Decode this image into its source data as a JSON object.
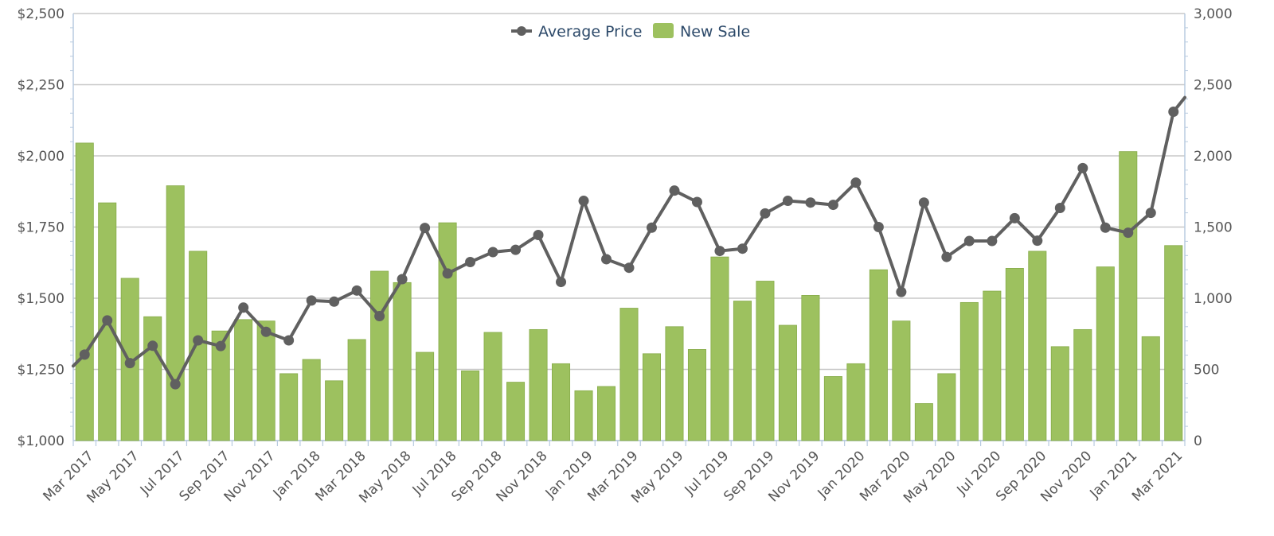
{
  "chart_data": {
    "type": "bar",
    "legend": {
      "placement": "top-center",
      "items": [
        {
          "label": "Average Price",
          "kind": "line"
        },
        {
          "label": "New Sale",
          "kind": "bar"
        }
      ]
    },
    "colors": {
      "bar": "#9dc15f",
      "bar_stroke": "#86ab49",
      "line": "#606060",
      "grid": "#c8c8c8",
      "axis": "#b8cbe0",
      "tick_text": "#555555",
      "legend_text": "#2d4a6a"
    },
    "left_axis": {
      "min": 1000,
      "max": 2500,
      "ticks": [
        1000,
        1250,
        1500,
        1750,
        2000,
        2250,
        2500
      ],
      "tick_labels": [
        "$1,000",
        "$1,250",
        "$1,500",
        "$1,750",
        "$2,000",
        "$2,250",
        "$2,500"
      ]
    },
    "right_axis": {
      "min": 0,
      "max": 3000,
      "ticks": [
        0,
        500,
        1000,
        1500,
        2000,
        2500,
        3000
      ],
      "tick_labels": [
        "0",
        "500",
        "1,000",
        "1,500",
        "2,000",
        "2,500",
        "3,000"
      ]
    },
    "grid": true,
    "x_tick_labels": [
      "Mar 2017",
      "May 2017",
      "Jul 2017",
      "Sep 2017",
      "Nov 2017",
      "Jan 2018",
      "Mar 2018",
      "May 2018",
      "Jul 2018",
      "Sep 2018",
      "Nov 2018",
      "Jan 2019",
      "Mar 2019",
      "May 2019",
      "Jul 2019",
      "Sep 2019",
      "Nov 2019",
      "Jan 2020",
      "Mar 2020",
      "May 2020",
      "Jul 2020",
      "Sep 2020",
      "Nov 2020",
      "Jan 2021",
      "Mar 2021"
    ],
    "categories": [
      "Mar 2017",
      "Apr 2017",
      "May 2017",
      "Jun 2017",
      "Jul 2017",
      "Aug 2017",
      "Sep 2017",
      "Oct 2017",
      "Nov 2017",
      "Dec 2017",
      "Jan 2018",
      "Feb 2018",
      "Mar 2018",
      "Apr 2018",
      "May 2018",
      "Jun 2018",
      "Jul 2018",
      "Aug 2018",
      "Sep 2018",
      "Oct 2018",
      "Nov 2018",
      "Dec 2018",
      "Jan 2019",
      "Feb 2019",
      "Mar 2019",
      "Apr 2019",
      "May 2019",
      "Jun 2019",
      "Jul 2019",
      "Aug 2019",
      "Sep 2019",
      "Oct 2019",
      "Nov 2019",
      "Dec 2019",
      "Jan 2020",
      "Feb 2020",
      "Mar 2020",
      "Apr 2020",
      "May 2020",
      "Jun 2020",
      "Jul 2020",
      "Aug 2020",
      "Sep 2020",
      "Oct 2020",
      "Nov 2020",
      "Dec 2020",
      "Jan 2021",
      "Feb 2021",
      "Mar 2021"
    ],
    "series": [
      {
        "name": "New Sale",
        "type": "bar",
        "axis": "right",
        "values": [
          2090,
          1670,
          1140,
          870,
          1790,
          1330,
          770,
          850,
          840,
          470,
          570,
          420,
          710,
          1190,
          1110,
          620,
          1530,
          490,
          760,
          410,
          780,
          540,
          350,
          380,
          930,
          610,
          800,
          640,
          1290,
          980,
          1120,
          810,
          1020,
          450,
          540,
          1200,
          840,
          260,
          470,
          970,
          1050,
          1210,
          1330,
          660,
          780,
          1220,
          2030,
          730,
          1370
        ]
      },
      {
        "name": "Average Price",
        "type": "line",
        "axis": "left",
        "values": [
          1302,
          1422,
          1272,
          1333,
          1198,
          1352,
          1332,
          1467,
          1382,
          1352,
          1492,
          1488,
          1527,
          1437,
          1567,
          1747,
          1587,
          1627,
          1662,
          1670,
          1722,
          1557,
          1842,
          1637,
          1607,
          1748,
          1878,
          1838,
          1666,
          1674,
          1798,
          1842,
          1836,
          1828,
          1906,
          1750,
          1522,
          1836,
          1645,
          1701,
          1701,
          1781,
          1702,
          1817,
          1957,
          1748,
          1730,
          1800,
          2155
        ],
        "edge_start": 1262,
        "edge_end": 2205
      }
    ]
  }
}
